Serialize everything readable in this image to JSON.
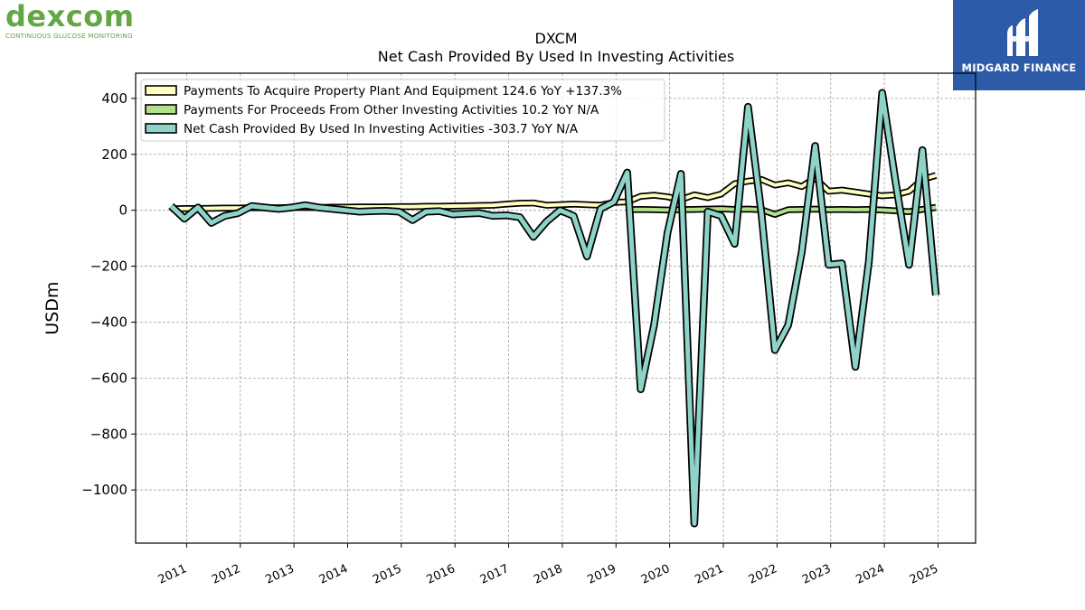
{
  "logos": {
    "left": {
      "word": "dexcom",
      "tagline": "CONTINUOUS GLUCOSE MONITORING",
      "color": "#62a744"
    },
    "right": {
      "brand": "MIDGARD FINANCE",
      "background": "#2d5ba8"
    }
  },
  "chart_data": {
    "type": "line",
    "title": "DXCM",
    "subtitle": "Net Cash Provided By Used In Investing Activities",
    "xlabel": "",
    "ylabel": "USDm",
    "ylim": [
      -1190,
      490
    ],
    "xlim": [
      2010.05,
      2025.7
    ],
    "yticks": [
      400,
      200,
      0,
      -200,
      -400,
      -600,
      -800,
      -1000
    ],
    "yticklabels": [
      "400",
      "200",
      "0",
      "−200",
      "−400",
      "−600",
      "−800",
      "−1000"
    ],
    "xticks": [
      2011,
      2012,
      2013,
      2014,
      2015,
      2016,
      2017,
      2018,
      2019,
      2020,
      2021,
      2022,
      2023,
      2024,
      2025
    ],
    "xticklabels": [
      "2011",
      "2012",
      "2013",
      "2014",
      "2015",
      "2016",
      "2017",
      "2018",
      "2019",
      "2020",
      "2021",
      "2022",
      "2023",
      "2024",
      "2025"
    ],
    "grid": true,
    "legend_position": "top-left",
    "series": [
      {
        "name": "Payments To Acquire Property Plant And Equipment",
        "legend_label": "Payments To Acquire Property Plant And Equipment  124.6 YoY +137.3%",
        "color": "#ffffc0",
        "x": [
          2010.71,
          2010.96,
          2011.21,
          2011.46,
          2011.71,
          2011.96,
          2012.21,
          2012.46,
          2012.71,
          2012.96,
          2013.21,
          2013.46,
          2013.71,
          2013.96,
          2014.21,
          2014.46,
          2014.71,
          2014.96,
          2015.21,
          2015.46,
          2015.71,
          2015.96,
          2016.21,
          2016.46,
          2016.71,
          2016.96,
          2017.21,
          2017.46,
          2017.71,
          2017.96,
          2018.21,
          2018.46,
          2018.71,
          2018.96,
          2019.21,
          2019.46,
          2019.71,
          2019.96,
          2020.21,
          2020.46,
          2020.71,
          2020.96,
          2021.21,
          2021.46,
          2021.71,
          2021.96,
          2022.21,
          2022.46,
          2022.71,
          2022.96,
          2023.21,
          2023.46,
          2023.71,
          2023.96,
          2024.21,
          2024.46,
          2024.71,
          2024.96
        ],
        "values": [
          5,
          6,
          6,
          7,
          8,
          8,
          9,
          9,
          9,
          10,
          10,
          10,
          11,
          11,
          12,
          12,
          12,
          13,
          13,
          14,
          14,
          15,
          16,
          17,
          18,
          22,
          25,
          26,
          18,
          20,
          22,
          20,
          18,
          28,
          30,
          50,
          54,
          48,
          38,
          55,
          45,
          58,
          95,
          104,
          110,
          90,
          98,
          85,
          115,
          68,
          72,
          65,
          58,
          52,
          55,
          68,
          110,
          124.6
        ]
      },
      {
        "name": "Payments For Proceeds From Other Investing Activities",
        "legend_label": "Payments For Proceeds From Other Investing Activities  10.2 YoY N/A",
        "color": "#b2df8a",
        "x": [
          2019.21,
          2019.46,
          2019.71,
          2019.96,
          2020.21,
          2020.46,
          2020.71,
          2020.96,
          2021.21,
          2021.46,
          2021.71,
          2021.96,
          2022.21,
          2022.46,
          2022.71,
          2022.96,
          2023.21,
          2023.46,
          2023.71,
          2023.96,
          2024.21,
          2024.46,
          2024.71,
          2024.96
        ],
        "values": [
          2,
          3,
          2,
          1,
          2,
          3,
          4,
          5,
          3,
          4,
          2,
          -15,
          2,
          3,
          4,
          2,
          3,
          2,
          3,
          1,
          -2,
          -5,
          3,
          10.2
        ]
      },
      {
        "name": "Net Cash Provided By Used In Investing Activities",
        "legend_label": "Net Cash Provided By Used In Investing Activities  -303.7 YoY N/A",
        "color": "#8dd3c7",
        "x": [
          2010.71,
          2010.96,
          2011.21,
          2011.46,
          2011.71,
          2011.96,
          2012.21,
          2012.46,
          2012.71,
          2012.96,
          2013.21,
          2013.46,
          2013.71,
          2013.96,
          2014.21,
          2014.46,
          2014.71,
          2014.96,
          2015.21,
          2015.46,
          2015.71,
          2015.96,
          2016.21,
          2016.46,
          2016.71,
          2016.96,
          2017.21,
          2017.46,
          2017.71,
          2017.96,
          2018.21,
          2018.46,
          2018.71,
          2018.96,
          2019.21,
          2019.46,
          2019.71,
          2019.96,
          2020.21,
          2020.46,
          2020.71,
          2020.96,
          2021.21,
          2021.46,
          2021.71,
          2021.96,
          2022.21,
          2022.46,
          2022.71,
          2022.96,
          2023.21,
          2023.46,
          2023.71,
          2023.96,
          2024.21,
          2024.46,
          2024.71,
          2024.96
        ],
        "values": [
          15,
          -30,
          10,
          -45,
          -20,
          -10,
          15,
          10,
          5,
          10,
          18,
          10,
          5,
          0,
          -5,
          -3,
          -2,
          -5,
          -35,
          -5,
          -3,
          -15,
          -12,
          -10,
          -20,
          -18,
          -25,
          -95,
          -40,
          0,
          -20,
          -165,
          5,
          30,
          135,
          -640,
          -410,
          -80,
          130,
          -1120,
          -5,
          -20,
          -120,
          370,
          -10,
          -500,
          -410,
          -150,
          230,
          -195,
          -190,
          -560,
          -185,
          420,
          100,
          -195,
          215,
          -303.7
        ]
      }
    ]
  }
}
